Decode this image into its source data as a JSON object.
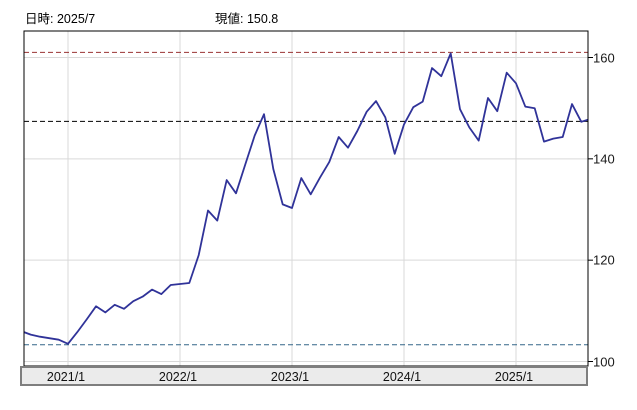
{
  "header": {
    "datetime_label": "日時:",
    "datetime_value": "2025/7",
    "price_label": "現値:",
    "price_value": "150.8"
  },
  "chart_data": {
    "type": "line",
    "title": "",
    "xlabel": "",
    "ylabel": "",
    "x": [
      "2020/8",
      "2020/9",
      "2020/10",
      "2020/11",
      "2020/12",
      "2021/1",
      "2021/2",
      "2021/3",
      "2021/4",
      "2021/5",
      "2021/6",
      "2021/7",
      "2021/8",
      "2021/9",
      "2021/10",
      "2021/11",
      "2021/12",
      "2022/1",
      "2022/2",
      "2022/3",
      "2022/4",
      "2022/5",
      "2022/6",
      "2022/7",
      "2022/8",
      "2022/9",
      "2022/10",
      "2022/11",
      "2022/12",
      "2023/1",
      "2023/2",
      "2023/3",
      "2023/4",
      "2023/5",
      "2023/6",
      "2023/7",
      "2023/8",
      "2023/9",
      "2023/10",
      "2023/11",
      "2023/12",
      "2024/1",
      "2024/2",
      "2024/3",
      "2024/4",
      "2024/5",
      "2024/6",
      "2024/7",
      "2024/8",
      "2024/9",
      "2024/10",
      "2024/11",
      "2024/12",
      "2025/1",
      "2025/2",
      "2025/3",
      "2025/4",
      "2025/5",
      "2025/6",
      "2025/7",
      "2025/8",
      "2025/9"
    ],
    "series": [
      {
        "name": "price",
        "values": [
          106.0,
          105.3,
          104.9,
          104.6,
          104.3,
          103.5,
          105.8,
          108.3,
          110.9,
          109.7,
          111.2,
          110.4,
          111.9,
          112.8,
          114.2,
          113.3,
          115.1,
          115.3,
          115.5,
          121.0,
          129.8,
          127.8,
          135.8,
          133.2,
          138.9,
          144.6,
          148.8,
          138.0,
          131.0,
          130.3,
          136.2,
          133.0,
          136.3,
          139.4,
          144.3,
          142.2,
          145.5,
          149.3,
          151.4,
          148.2,
          141.0,
          146.8,
          150.2,
          151.3,
          157.9,
          156.3,
          160.8,
          149.8,
          146.2,
          143.6,
          152.0,
          149.4,
          157.0,
          154.9,
          150.3,
          150.0,
          143.4,
          144.0,
          144.3,
          150.8,
          147.3,
          147.9
        ]
      }
    ],
    "current_value": 150.8,
    "current_datetime": "2025/7",
    "yticks": [
      160,
      140,
      120,
      100
    ],
    "ytick_labels": [
      "160",
      "140",
      "120",
      "100"
    ],
    "xticks": [
      "2021/1",
      "2022/1",
      "2023/1",
      "2024/1",
      "2025/1"
    ],
    "ylim": [
      99,
      165
    ],
    "grid": true,
    "legend": "none",
    "reference_lines": [
      {
        "name": "period-high-line",
        "value": 161.0,
        "color": "#993333",
        "style": "dashed"
      },
      {
        "name": "latest-close-line",
        "value": 147.4,
        "color": "#000000",
        "style": "dashed"
      },
      {
        "name": "period-low-line",
        "value": 103.3,
        "color": "#336688",
        "style": "dashed"
      }
    ],
    "line_color": "#303399"
  },
  "colors": {
    "background": "#ffffff",
    "plot_border": "#000000",
    "gridline": "#d9d9d9",
    "axis_band_bg": "#ebebeb",
    "axis_band_border": "#7e7e7e",
    "text": "#000000"
  }
}
